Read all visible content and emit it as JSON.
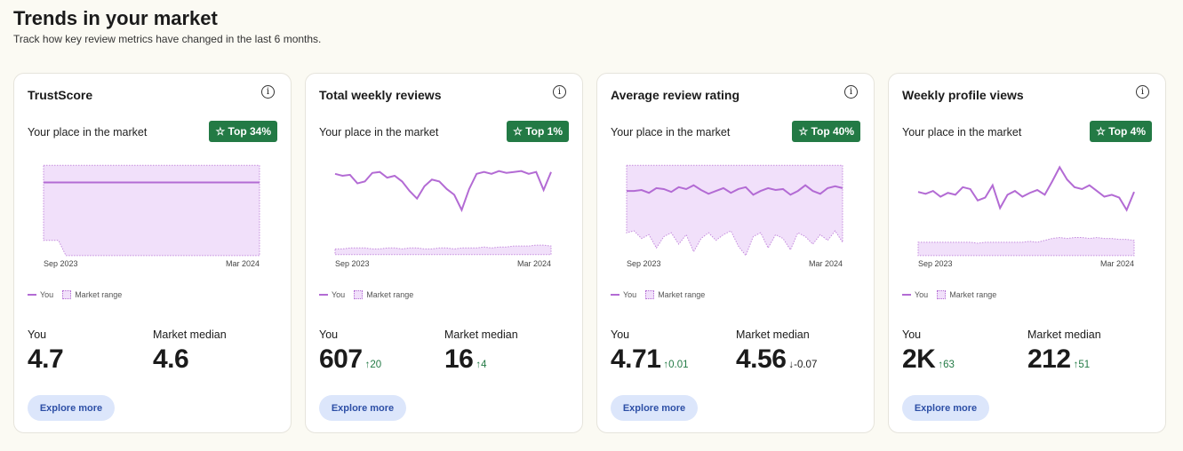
{
  "header": {
    "title": "Trends in your market",
    "subtitle": "Track how key review metrics have changed in the last 6 months."
  },
  "colors": {
    "you_line": "#b36bd4",
    "range_fill": "#f1e0fa",
    "badge": "#237a45",
    "button_bg": "#dce6fb",
    "up": "#237a45",
    "down": "#c0392b"
  },
  "legend": {
    "you": "You",
    "range": "Market range"
  },
  "cards": [
    {
      "title": "TrustScore",
      "place": "Your place in the market",
      "badge": "☆ Top 34%",
      "you_label": "You",
      "you_value": "4.7",
      "you_delta": "",
      "you_dir": "",
      "median_label": "Market median",
      "median_value": "4.6",
      "median_delta": "",
      "median_dir": "",
      "button": "Explore more",
      "chart_data": {
        "type": "area",
        "x_labels": [
          "Sep 2023",
          "Mar 2024"
        ],
        "you": [
          79,
          79,
          79,
          79,
          79,
          79,
          79,
          79,
          79,
          79,
          79,
          79,
          79,
          79,
          79,
          79,
          79,
          79,
          79,
          79,
          79,
          79,
          79,
          79,
          79,
          79,
          79,
          79,
          79,
          79
        ],
        "range_high": [
          97,
          97,
          97,
          97,
          97,
          97,
          97,
          97,
          97,
          97,
          97,
          97,
          97,
          97,
          97,
          97,
          97,
          97,
          97,
          97,
          97,
          97,
          97,
          97,
          97,
          97,
          97,
          97,
          97,
          97
        ],
        "range_low": [
          18,
          18,
          18,
          2,
          2,
          2,
          2,
          2,
          2,
          2,
          2,
          2,
          2,
          2,
          2,
          2,
          2,
          2,
          2,
          2,
          2,
          2,
          2,
          2,
          2,
          2,
          2,
          2,
          2,
          2
        ]
      }
    },
    {
      "title": "Total weekly reviews",
      "place": "Your place in the market",
      "badge": "☆ Top 1%",
      "you_label": "You",
      "you_value": "607",
      "you_delta": "↑20",
      "you_dir": "up",
      "median_label": "Market median",
      "median_value": "16",
      "median_delta": "↑4",
      "median_dir": "up",
      "button": "Explore more",
      "chart_data": {
        "type": "area",
        "x_labels": [
          "Sep 2023",
          "Mar 2024"
        ],
        "you": [
          88,
          86,
          87,
          78,
          80,
          89,
          90,
          84,
          86,
          80,
          70,
          62,
          75,
          82,
          80,
          72,
          66,
          50,
          72,
          88,
          90,
          88,
          91,
          89,
          90,
          91,
          88,
          90,
          71,
          90
        ],
        "range_high": [
          9,
          9,
          10,
          10,
          10,
          9,
          9,
          10,
          10,
          9,
          10,
          10,
          9,
          9,
          10,
          10,
          9,
          10,
          10,
          10,
          11,
          10,
          11,
          11,
          12,
          12,
          12,
          13,
          13,
          12
        ],
        "range_low": [
          3,
          3,
          3,
          3,
          3,
          3,
          3,
          3,
          3,
          3,
          3,
          3,
          3,
          3,
          3,
          3,
          3,
          3,
          3,
          3,
          3,
          3,
          3,
          3,
          3,
          3,
          3,
          3,
          3,
          3
        ]
      }
    },
    {
      "title": "Average review rating",
      "place": "Your place in the market",
      "badge": "☆ Top 40%",
      "you_label": "You",
      "you_value": "4.71",
      "you_delta": "↑0.01",
      "you_dir": "up",
      "median_label": "Market median",
      "median_value": "4.56",
      "median_delta": "↓-0.07",
      "median_dir": "down",
      "button": "Explore more",
      "chart_data": {
        "type": "area",
        "x_labels": [
          "Sep 2023",
          "Mar 2024"
        ],
        "you": [
          70,
          70,
          71,
          68,
          73,
          72,
          69,
          74,
          72,
          76,
          71,
          67,
          70,
          73,
          68,
          72,
          74,
          66,
          70,
          73,
          71,
          72,
          66,
          70,
          76,
          70,
          67,
          73,
          75,
          73
        ],
        "range_high": [
          97,
          97,
          97,
          97,
          97,
          97,
          97,
          97,
          97,
          97,
          97,
          97,
          97,
          97,
          97,
          97,
          97,
          97,
          97,
          97,
          97,
          97,
          97,
          97,
          97,
          97,
          97,
          97,
          97,
          97
        ],
        "range_low": [
          26,
          28,
          20,
          24,
          10,
          22,
          26,
          14,
          24,
          6,
          20,
          26,
          18,
          24,
          28,
          12,
          2,
          22,
          26,
          10,
          24,
          20,
          8,
          26,
          22,
          14,
          24,
          18,
          28,
          16
        ]
      }
    },
    {
      "title": "Weekly profile views",
      "place": "Your place in the market",
      "badge": "☆ Top 4%",
      "you_label": "You",
      "you_value": "2K",
      "you_delta": "↑63",
      "you_dir": "up",
      "median_label": "Market median",
      "median_value": "212",
      "median_delta": "↑51",
      "median_dir": "up",
      "button": "Explore more",
      "chart_data": {
        "type": "area",
        "x_labels": [
          "Sep 2023",
          "Mar 2024"
        ],
        "you": [
          69,
          67,
          70,
          64,
          68,
          66,
          74,
          72,
          60,
          63,
          76,
          52,
          66,
          70,
          64,
          68,
          71,
          66,
          80,
          95,
          82,
          74,
          72,
          76,
          70,
          64,
          66,
          63,
          50,
          69
        ],
        "range_high": [
          16,
          16,
          16,
          16,
          16,
          16,
          16,
          16,
          15,
          16,
          16,
          16,
          16,
          16,
          16,
          17,
          16,
          18,
          20,
          21,
          20,
          21,
          21,
          20,
          21,
          20,
          20,
          19,
          19,
          18
        ],
        "range_low": [
          2,
          2,
          2,
          2,
          2,
          2,
          2,
          2,
          2,
          2,
          2,
          2,
          2,
          2,
          2,
          2,
          2,
          2,
          2,
          2,
          2,
          2,
          2,
          2,
          2,
          2,
          2,
          2,
          2,
          2
        ]
      }
    }
  ]
}
